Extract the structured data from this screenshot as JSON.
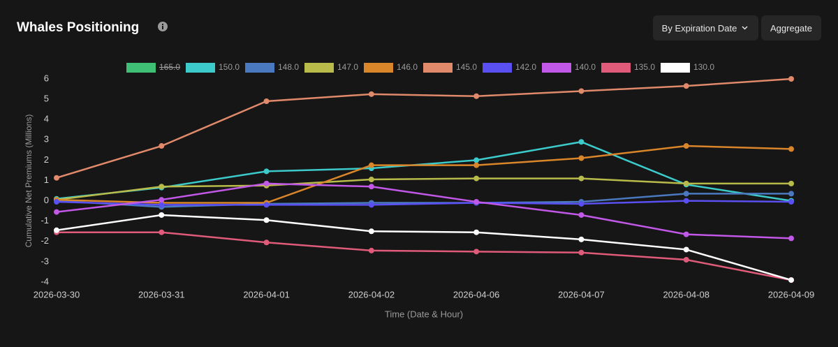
{
  "header": {
    "title": "Whales Positioning",
    "buttons": [
      "By Expiration Date",
      "Aggregate"
    ]
  },
  "chart_data": {
    "type": "line",
    "xlabel": "Time (Date & Hour)",
    "ylabel": "Cumulative Net Premiums (Millions)",
    "categories": [
      "2026-03-30",
      "2026-03-31",
      "2026-04-01",
      "2026-04-02",
      "2026-04-06",
      "2026-04-07",
      "2026-04-08",
      "2026-04-09"
    ],
    "ylim": [
      -4,
      6
    ],
    "yticks": [
      -4,
      -3,
      -2,
      -1,
      0,
      1,
      2,
      3,
      4,
      5,
      6
    ],
    "grid": false,
    "legend": "top",
    "series": [
      {
        "name": "165.0",
        "color": "#3fbf76",
        "hidden": true,
        "values": [
          null,
          null,
          null,
          null,
          null,
          null,
          null,
          null
        ]
      },
      {
        "name": "150.0",
        "color": "#3ccaca",
        "values": [
          0.1,
          0.65,
          1.45,
          1.6,
          2.0,
          2.9,
          0.8,
          0
        ]
      },
      {
        "name": "148.0",
        "color": "#4a79c0",
        "values": [
          0,
          -0.3,
          -0.15,
          -0.1,
          -0.1,
          -0.05,
          0.35,
          0.35
        ]
      },
      {
        "name": "147.0",
        "color": "#b8bb4a",
        "values": [
          0.05,
          0.7,
          0.75,
          1.05,
          1.1,
          1.1,
          0.85,
          0.85
        ]
      },
      {
        "name": "146.0",
        "color": "#d9862a",
        "values": [
          0.05,
          -0.1,
          -0.1,
          1.75,
          1.75,
          2.1,
          2.7,
          2.55
        ]
      },
      {
        "name": "145.0",
        "color": "#e0896b",
        "values": [
          1.13,
          2.7,
          4.9,
          5.25,
          5.15,
          5.4,
          5.65,
          6.0
        ]
      },
      {
        "name": "142.0",
        "color": "#5a4ff0",
        "values": [
          -0.05,
          -0.2,
          -0.2,
          -0.2,
          -0.1,
          -0.15,
          0,
          -0.05
        ]
      },
      {
        "name": "140.0",
        "color": "#c158e8",
        "values": [
          -0.55,
          0.05,
          0.85,
          0.7,
          -0.05,
          -0.7,
          -1.65,
          -1.85
        ]
      },
      {
        "name": "135.0",
        "color": "#e05b7a",
        "values": [
          -1.55,
          -1.55,
          -2.05,
          -2.45,
          -2.5,
          -2.55,
          -2.9,
          -3.9
        ]
      },
      {
        "name": "130.0",
        "color": "#ffffff",
        "values": [
          -1.45,
          -0.7,
          -0.95,
          -1.5,
          -1.55,
          -1.9,
          -2.4,
          -3.9
        ]
      }
    ]
  }
}
